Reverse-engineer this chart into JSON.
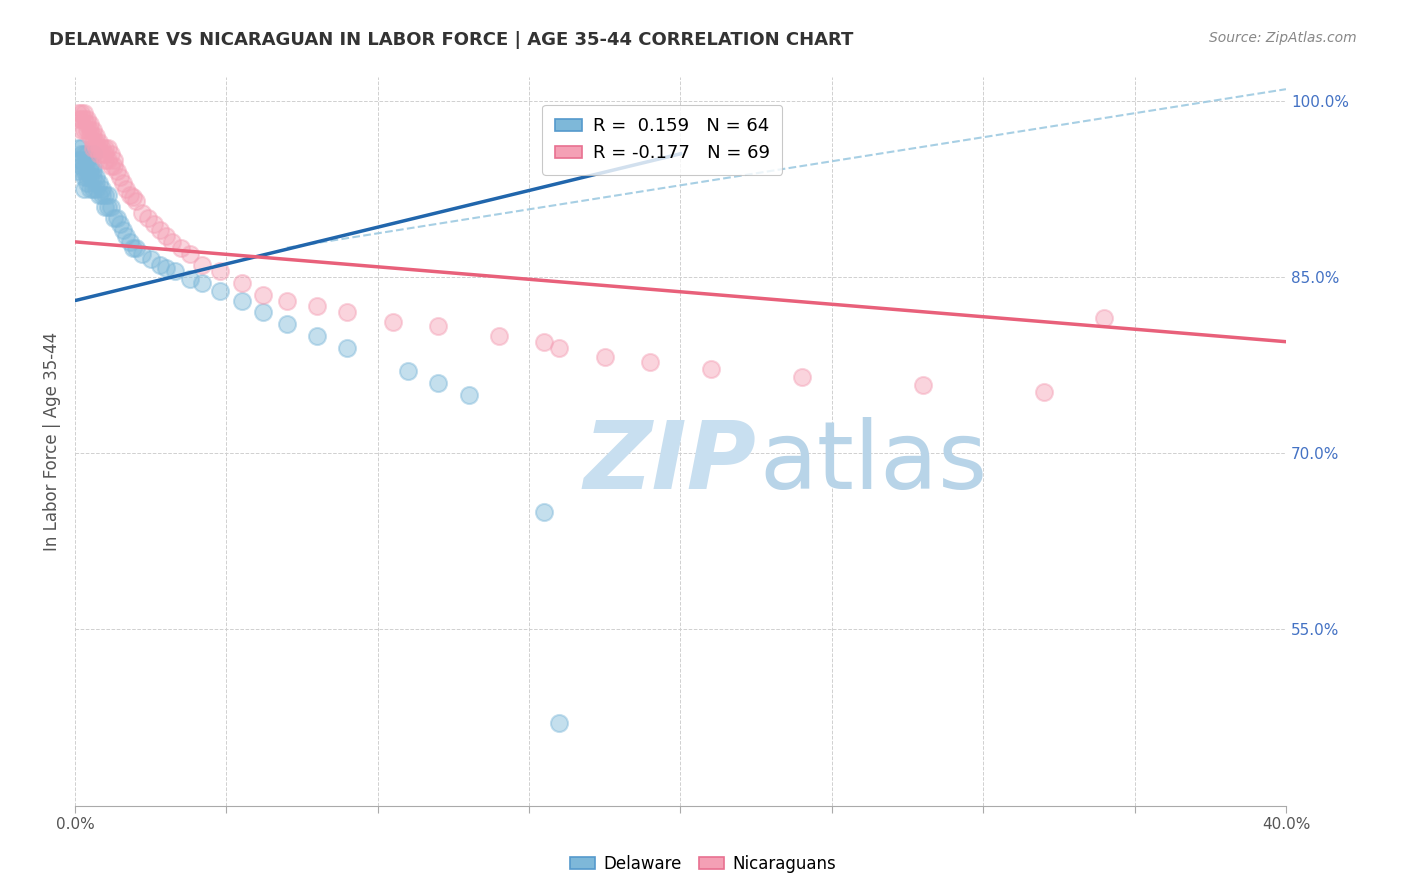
{
  "title": "DELAWARE VS NICARAGUAN IN LABOR FORCE | AGE 35-44 CORRELATION CHART",
  "source": "Source: ZipAtlas.com",
  "ylabel": "In Labor Force | Age 35-44",
  "xlim": [
    0.0,
    0.4
  ],
  "ylim": [
    0.4,
    1.02
  ],
  "ytick_labels_right": [
    "100.0%",
    "85.0%",
    "70.0%",
    "55.0%"
  ],
  "ytick_vals_right": [
    1.0,
    0.85,
    0.7,
    0.55
  ],
  "xtick_vals": [
    0.0,
    0.05,
    0.1,
    0.15,
    0.2,
    0.25,
    0.3,
    0.35,
    0.4
  ],
  "legend_r_blue": "0.159",
  "legend_n_blue": "64",
  "legend_r_pink": "-0.177",
  "legend_n_pink": "69",
  "blue_color": "#7eb8d9",
  "pink_color": "#f4a0b5",
  "blue_line_color": "#2166ac",
  "pink_line_color": "#e8607a",
  "dashed_line_color": "#9ecae1",
  "watermark_zip_color": "#c8dff0",
  "watermark_atlas_color": "#b8d4e8",
  "background_color": "#ffffff",
  "grid_color": "#d0d0d0",
  "blue_points_x": [
    0.001,
    0.001,
    0.001,
    0.002,
    0.002,
    0.002,
    0.002,
    0.003,
    0.003,
    0.003,
    0.003,
    0.003,
    0.004,
    0.004,
    0.004,
    0.004,
    0.004,
    0.005,
    0.005,
    0.005,
    0.005,
    0.006,
    0.006,
    0.006,
    0.006,
    0.006,
    0.007,
    0.007,
    0.007,
    0.008,
    0.008,
    0.009,
    0.009,
    0.01,
    0.01,
    0.011,
    0.011,
    0.012,
    0.013,
    0.014,
    0.015,
    0.016,
    0.017,
    0.018,
    0.019,
    0.02,
    0.022,
    0.025,
    0.028,
    0.03,
    0.033,
    0.038,
    0.042,
    0.048,
    0.055,
    0.062,
    0.07,
    0.08,
    0.09,
    0.11,
    0.12,
    0.13,
    0.155,
    0.16
  ],
  "blue_points_y": [
    0.96,
    0.95,
    0.94,
    0.96,
    0.955,
    0.95,
    0.945,
    0.955,
    0.945,
    0.94,
    0.935,
    0.925,
    0.955,
    0.95,
    0.94,
    0.935,
    0.93,
    0.945,
    0.94,
    0.935,
    0.925,
    0.955,
    0.945,
    0.94,
    0.935,
    0.925,
    0.935,
    0.93,
    0.925,
    0.93,
    0.92,
    0.925,
    0.92,
    0.92,
    0.91,
    0.92,
    0.91,
    0.91,
    0.9,
    0.9,
    0.895,
    0.89,
    0.885,
    0.88,
    0.875,
    0.875,
    0.87,
    0.865,
    0.86,
    0.858,
    0.855,
    0.848,
    0.845,
    0.838,
    0.83,
    0.82,
    0.81,
    0.8,
    0.79,
    0.77,
    0.76,
    0.75,
    0.65,
    0.47
  ],
  "pink_points_x": [
    0.001,
    0.001,
    0.002,
    0.002,
    0.002,
    0.003,
    0.003,
    0.003,
    0.004,
    0.004,
    0.004,
    0.005,
    0.005,
    0.005,
    0.006,
    0.006,
    0.006,
    0.006,
    0.007,
    0.007,
    0.007,
    0.008,
    0.008,
    0.008,
    0.009,
    0.009,
    0.01,
    0.01,
    0.01,
    0.011,
    0.011,
    0.012,
    0.012,
    0.013,
    0.013,
    0.014,
    0.015,
    0.016,
    0.017,
    0.018,
    0.019,
    0.02,
    0.022,
    0.024,
    0.026,
    0.028,
    0.03,
    0.032,
    0.035,
    0.038,
    0.042,
    0.048,
    0.055,
    0.062,
    0.07,
    0.08,
    0.09,
    0.105,
    0.12,
    0.14,
    0.155,
    0.16,
    0.175,
    0.19,
    0.21,
    0.24,
    0.28,
    0.32,
    0.34
  ],
  "pink_points_y": [
    0.99,
    0.985,
    0.99,
    0.985,
    0.975,
    0.99,
    0.985,
    0.975,
    0.985,
    0.98,
    0.975,
    0.98,
    0.975,
    0.97,
    0.975,
    0.97,
    0.965,
    0.96,
    0.97,
    0.965,
    0.96,
    0.965,
    0.96,
    0.955,
    0.96,
    0.955,
    0.96,
    0.955,
    0.95,
    0.96,
    0.95,
    0.955,
    0.945,
    0.95,
    0.945,
    0.94,
    0.935,
    0.93,
    0.925,
    0.92,
    0.918,
    0.915,
    0.905,
    0.9,
    0.895,
    0.89,
    0.885,
    0.88,
    0.875,
    0.87,
    0.86,
    0.855,
    0.845,
    0.835,
    0.83,
    0.825,
    0.82,
    0.812,
    0.808,
    0.8,
    0.795,
    0.79,
    0.782,
    0.778,
    0.772,
    0.765,
    0.758,
    0.752,
    0.815
  ],
  "blue_line_x": [
    0.0,
    0.2
  ],
  "blue_line_y": [
    0.83,
    0.955
  ],
  "pink_line_x": [
    0.0,
    0.4
  ],
  "pink_line_y": [
    0.88,
    0.795
  ],
  "dash_line_x": [
    0.07,
    0.4
  ],
  "dash_line_y": [
    0.875,
    1.01
  ]
}
